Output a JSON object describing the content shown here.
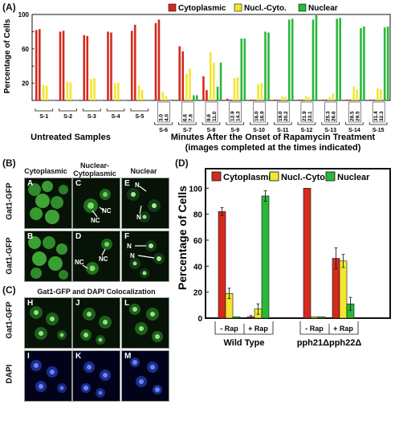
{
  "panels": {
    "A": "(A)",
    "B": "(B)",
    "C": "(C)",
    "D": "(D)"
  },
  "colors": {
    "cytoplasmic": "#d42a1e",
    "nuclear_cyto": "#f2e630",
    "nuclear": "#2ab83a"
  },
  "panel_a": {
    "legend": [
      "Cytoplasmic",
      "Nucl.-Cyto.",
      "Nuclear"
    ],
    "ylabel": "Percentage of Cells",
    "ticks": [
      "0",
      "20",
      "40",
      "60",
      "80",
      "100"
    ],
    "group_untreated": "Untreated Samples",
    "group_rap_line1": "Minutes After the Onset of Rapamycin Treatment",
    "group_rap_line2": "(images completed at the times indicated)"
  },
  "chart_data": [
    {
      "type": "bar",
      "categories": [
        "S-1",
        "S-2",
        "S-3",
        "S-4",
        "S-5",
        "S-6",
        "S-7",
        "S-8",
        "S-9",
        "S-10",
        "S-11",
        "S-12",
        "S-13",
        "S-14",
        "S-15"
      ],
      "time_labels": [
        [
          "",
          ""
        ],
        [
          "",
          ""
        ],
        [
          "",
          ""
        ],
        [
          "",
          ""
        ],
        [
          "",
          ""
        ],
        [
          "3.0",
          "4.0"
        ],
        [
          "6.6",
          "7.8"
        ],
        [
          "9.6",
          "11.0"
        ],
        [
          "12.9",
          "14.3"
        ],
        [
          "16.0",
          "16.9"
        ],
        [
          "19.0",
          "20.2"
        ],
        [
          "21.9",
          "23.1"
        ],
        [
          "25.3",
          "26.6"
        ],
        [
          "28.5",
          "29.5"
        ],
        [
          "31.4",
          "32.3"
        ]
      ],
      "series": [
        {
          "name": "Cytoplasmic",
          "values": [
            [
              82,
              83
            ],
            [
              80,
              81
            ],
            [
              76,
              75
            ],
            [
              80,
              79
            ],
            [
              81,
              88
            ],
            [
              90,
              94
            ],
            [
              63,
              57
            ],
            [
              28,
              12
            ],
            [
              2,
              1
            ],
            [
              1,
              1
            ],
            [
              1,
              1
            ],
            [
              1,
              1
            ],
            [
              1,
              1
            ],
            [
              1,
              1
            ],
            [
              1,
              1
            ]
          ]
        },
        {
          "name": "Nucl.-Cyto.",
          "values": [
            [
              18,
              17
            ],
            [
              22,
              21
            ],
            [
              25,
              26
            ],
            [
              20,
              21
            ],
            [
              18,
              12
            ],
            [
              10,
              5
            ],
            [
              31,
              37
            ],
            [
              56,
              44
            ],
            [
              26,
              27
            ],
            [
              19,
              20
            ],
            [
              5,
              4
            ],
            [
              5,
              4
            ],
            [
              4,
              8
            ],
            [
              16,
              13
            ],
            [
              14,
              13
            ]
          ]
        },
        {
          "name": "Nuclear",
          "values": [
            [
              0,
              0
            ],
            [
              0,
              0
            ],
            [
              0,
              0
            ],
            [
              0,
              0
            ],
            [
              0,
              0
            ],
            [
              0,
              1
            ],
            [
              6,
              6
            ],
            [
              16,
              44
            ],
            [
              72,
              72
            ],
            [
              80,
              79
            ],
            [
              94,
              95
            ],
            [
              94,
              99
            ],
            [
              95,
              96
            ],
            [
              84,
              86
            ],
            [
              85,
              86
            ]
          ]
        }
      ],
      "ylim": [
        0,
        100
      ]
    },
    {
      "type": "bar",
      "title": "",
      "ylabel": "Percentage of Cells",
      "ticks": [
        "0",
        "20",
        "40",
        "60",
        "80",
        "100"
      ],
      "ylim": [
        0,
        100
      ],
      "groups": [
        {
          "name": "Wild Type",
          "conditions": [
            "- Rap",
            "+ Rap"
          ]
        },
        {
          "name": "pph21Δpph22Δ",
          "conditions": [
            "- Rap",
            "+ Rap"
          ]
        }
      ],
      "legend": [
        "Cytoplasmic",
        "Nucl.-Cyto.",
        "Nuclear"
      ],
      "series": [
        {
          "name": "Cytoplasmic",
          "values": [
            82,
            1,
            100,
            46
          ],
          "errors": [
            3,
            1,
            0,
            8
          ]
        },
        {
          "name": "Nucl.-Cyto.",
          "values": [
            19,
            7,
            1,
            44
          ],
          "errors": [
            4,
            4,
            0,
            5
          ]
        },
        {
          "name": "Nuclear",
          "values": [
            1,
            94,
            1,
            11
          ],
          "errors": [
            0,
            4,
            0,
            5
          ]
        }
      ]
    }
  ],
  "micrographs": {
    "col_cyto": "Cytoplasmic",
    "col_nuccyto_1": "Nuclear-",
    "col_nuccyto_2": "Cytoplasmic",
    "col_nuclear": "Nuclear",
    "row_label_1": "Gat1-GFP",
    "row_label_2": "Gat1-GFP",
    "letters_top": [
      "A",
      "C",
      "E"
    ],
    "letters_bottom": [
      "B",
      "D",
      "F"
    ],
    "arrow_nc": "NC",
    "arrow_n": "N",
    "coloc_title": "Gat1-GFP and DAPI Colocalization",
    "coloc_row_gfp": "Gat1-GFP",
    "coloc_row_dapi": "DAPI",
    "coloc_letters_gfp": [
      "H",
      "J",
      "L"
    ],
    "coloc_letters_dapi": [
      "I",
      "K",
      "M"
    ]
  }
}
